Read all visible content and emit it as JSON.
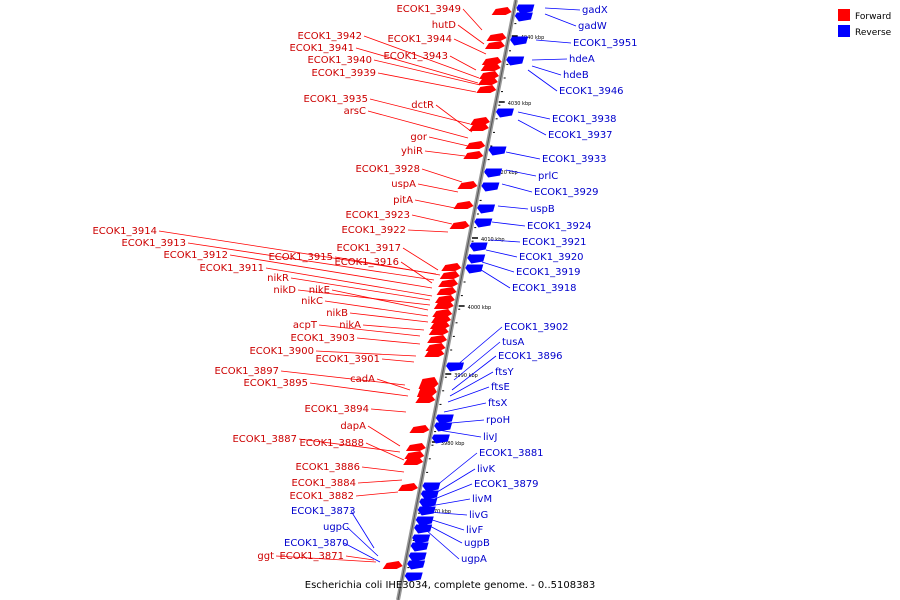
{
  "caption": "Escherichia coli IHE3034, complete genome. - 0..5108383",
  "legend": {
    "forward_label": "Forward",
    "reverse_label": "Reverse",
    "forward_color": "#ff0000",
    "reverse_color": "#0000ff"
  },
  "ticks": [
    "4040 kbp",
    "4030 kbp",
    "4020 kbp",
    "4010 kbp",
    "4000 kbp",
    "3990 kbp",
    "3980 kbp",
    "3970 kbp"
  ],
  "forward_genes": [
    "ECOK1_3949",
    "hutD",
    "ECOK1_3944",
    "ECOK1_3942",
    "ECOK1_3941",
    "ECOK1_3943",
    "ECOK1_3940",
    "ECOK1_3939",
    "ECOK1_3935",
    "dctR",
    "arsC",
    "gor",
    "yhiR",
    "ECOK1_3928",
    "uspA",
    "pitA",
    "ECOK1_3923",
    "ECOK1_3922",
    "ECOK1_3914",
    "ECOK1_3913",
    "ECOK1_3917",
    "ECOK1_3912",
    "ECOK1_3915",
    "ECOK1_3916",
    "ECOK1_3911",
    "nikR",
    "nikD",
    "nikE",
    "nikC",
    "nikB",
    "acpT",
    "nikA",
    "ECOK1_3903",
    "ECOK1_3900",
    "ECOK1_3901",
    "ECOK1_3897",
    "cadA",
    "ECOK1_3895",
    "ECOK1_3894",
    "dapA",
    "ECOK1_3887",
    "ECOK1_3888",
    "ECOK1_3886",
    "ECOK1_3884",
    "ECOK1_3882",
    "ggt",
    "ECOK1_3871"
  ],
  "reverse_genes": [
    "gadX",
    "gadW",
    "ECOK1_3951",
    "hdeA",
    "hdeB",
    "ECOK1_3946",
    "ECOK1_3938",
    "ECOK1_3937",
    "ECOK1_3933",
    "prlC",
    "ECOK1_3929",
    "uspB",
    "ECOK1_3924",
    "ECOK1_3921",
    "ECOK1_3920",
    "ECOK1_3919",
    "ECOK1_3918",
    "ECOK1_3902",
    "tusA",
    "ECOK1_3896",
    "ftsY",
    "ftsE",
    "ftsX",
    "rpoH",
    "livJ",
    "ECOK1_3881",
    "livK",
    "ECOK1_3879",
    "livM",
    "livG",
    "livF",
    "ugpB",
    "ugpA",
    "ECOK1_3873",
    "ugpC",
    "ECOK1_3870"
  ]
}
